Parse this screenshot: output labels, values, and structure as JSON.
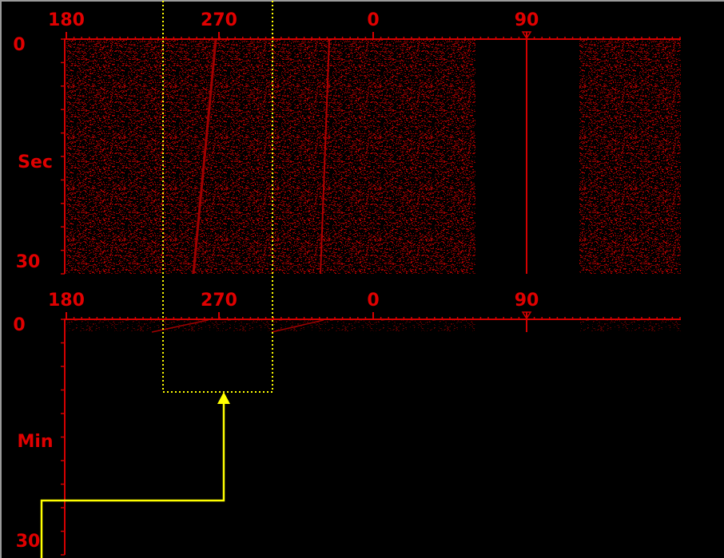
{
  "panels": [
    {
      "bearing_labels": [
        "180",
        "270",
        "0",
        "90"
      ],
      "time_start": "0",
      "time_unit": "Sec",
      "time_end": "30"
    },
    {
      "bearing_labels": [
        "180",
        "270",
        "0",
        "90"
      ],
      "time_start": "0",
      "time_unit": "Min",
      "time_end": "30"
    }
  ]
}
